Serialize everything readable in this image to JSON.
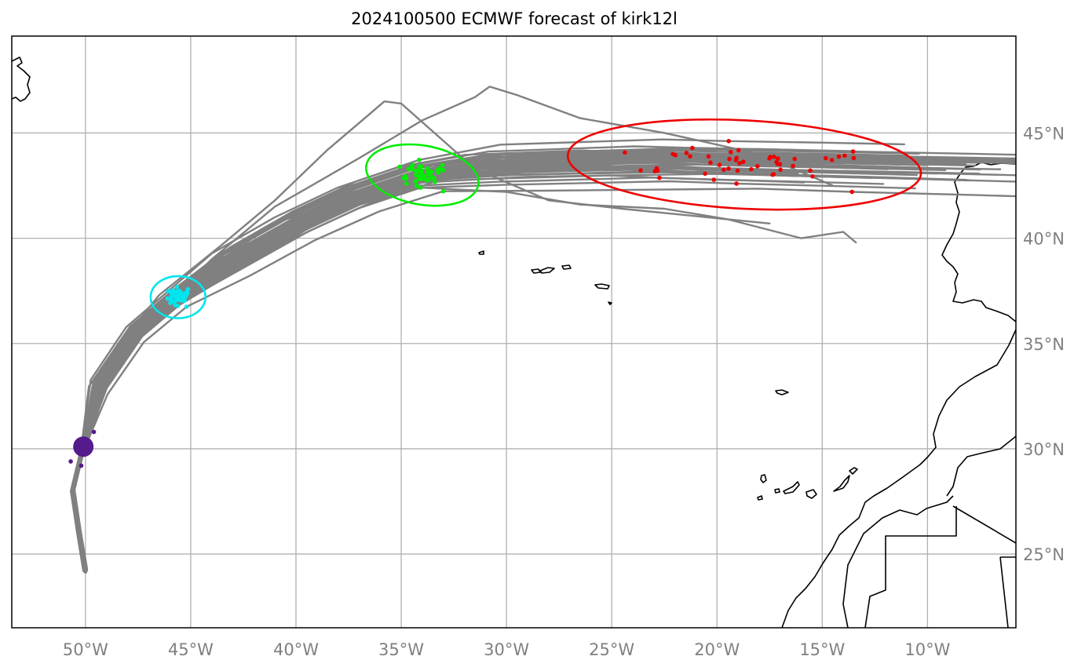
{
  "title": "2024100500 ECMWF forecast of kirk12l",
  "map": {
    "projection": "PlateCarree",
    "lon_range": [
      -53.5,
      -5.8
    ],
    "lat_range": [
      21.5,
      49.6
    ],
    "gridlines": true,
    "lon_ticks": [
      {
        "lon": -50,
        "label": "50°W"
      },
      {
        "lon": -45,
        "label": "45°W"
      },
      {
        "lon": -40,
        "label": "40°W"
      },
      {
        "lon": -35,
        "label": "35°W"
      },
      {
        "lon": -30,
        "label": "30°W"
      },
      {
        "lon": -25,
        "label": "25°W"
      },
      {
        "lon": -20,
        "label": "20°W"
      },
      {
        "lon": -15,
        "label": "15°W"
      },
      {
        "lon": -10,
        "label": "10°W"
      }
    ],
    "lat_ticks": [
      {
        "lat": 45,
        "label": "45°N"
      },
      {
        "lat": 40,
        "label": "40°N"
      },
      {
        "lat": 35,
        "label": "35°N"
      },
      {
        "lat": 30,
        "label": "30°N"
      },
      {
        "lat": 25,
        "label": "25°N"
      }
    ]
  },
  "colors": {
    "track": "#808080",
    "initial": "#551a8b",
    "day2": "#00e5ee",
    "day4": "#00ee00",
    "day6": "#ee0000",
    "coast": "#000000",
    "grid": "#b0b0b0"
  },
  "chart_data": {
    "type": "scatter",
    "n_members": 51,
    "stages": [
      {
        "name": "initial",
        "color": "#551a8b",
        "center": [
          -50.1,
          30.1
        ],
        "ellipse": {
          "rx_deg": 0.5,
          "ry_deg": 0.5,
          "angle": 0
        }
      },
      {
        "name": "day2",
        "color": "#00e5ee",
        "center": [
          -45.6,
          37.2
        ],
        "ellipse": {
          "rx_deg": 1.3,
          "ry_deg": 1.0,
          "angle": 0
        }
      },
      {
        "name": "day4",
        "color": "#00ee00",
        "center": [
          -34.0,
          43.0
        ],
        "ellipse": {
          "rx_deg": 2.7,
          "ry_deg": 1.4,
          "angle": 10
        }
      },
      {
        "name": "day6",
        "color": "#ee0000",
        "center": [
          -18.7,
          43.5
        ],
        "ellipse": {
          "rx_deg": 8.4,
          "ry_deg": 2.1,
          "angle": 3
        }
      }
    ],
    "outlier_tracks": [
      [
        [
          -50,
          30
        ],
        [
          -49.5,
          32.5
        ],
        [
          -48.5,
          34.8
        ],
        [
          -46.5,
          37.3
        ],
        [
          -43.5,
          39.7
        ],
        [
          -41,
          41.8
        ],
        [
          -38.5,
          44.2
        ],
        [
          -36.5,
          45.9
        ],
        [
          -35.8,
          46.5
        ],
        [
          -35,
          46.4
        ],
        [
          -31.5,
          43.3
        ],
        [
          -28,
          41.8
        ],
        [
          -24.5,
          41.4
        ],
        [
          -20.5,
          41.0
        ],
        [
          -17.5,
          40.7
        ]
      ],
      [
        [
          -50,
          30
        ],
        [
          -49,
          33
        ],
        [
          -47,
          36
        ],
        [
          -44,
          39
        ],
        [
          -41,
          41.5
        ],
        [
          -37,
          43.8
        ],
        [
          -34,
          45.6
        ],
        [
          -31.5,
          46.7
        ],
        [
          -30.8,
          47.2
        ],
        [
          -29.5,
          46.8
        ],
        [
          -26.5,
          45.7
        ],
        [
          -22.5,
          45.0
        ],
        [
          -18,
          44.0
        ],
        [
          -14.5,
          42.5
        ]
      ],
      [
        [
          -50,
          30
        ],
        [
          -49,
          33
        ],
        [
          -47,
          36
        ],
        [
          -44,
          38.7
        ],
        [
          -41,
          40.7
        ],
        [
          -38,
          41.8
        ],
        [
          -34,
          42.4
        ],
        [
          -30,
          42.2
        ],
        [
          -26.5,
          41.6
        ],
        [
          -22.5,
          41.4
        ],
        [
          -19.5,
          40.9
        ],
        [
          -16,
          40.0
        ],
        [
          -14.0,
          40.3
        ],
        [
          -13.4,
          39.8
        ]
      ]
    ]
  }
}
